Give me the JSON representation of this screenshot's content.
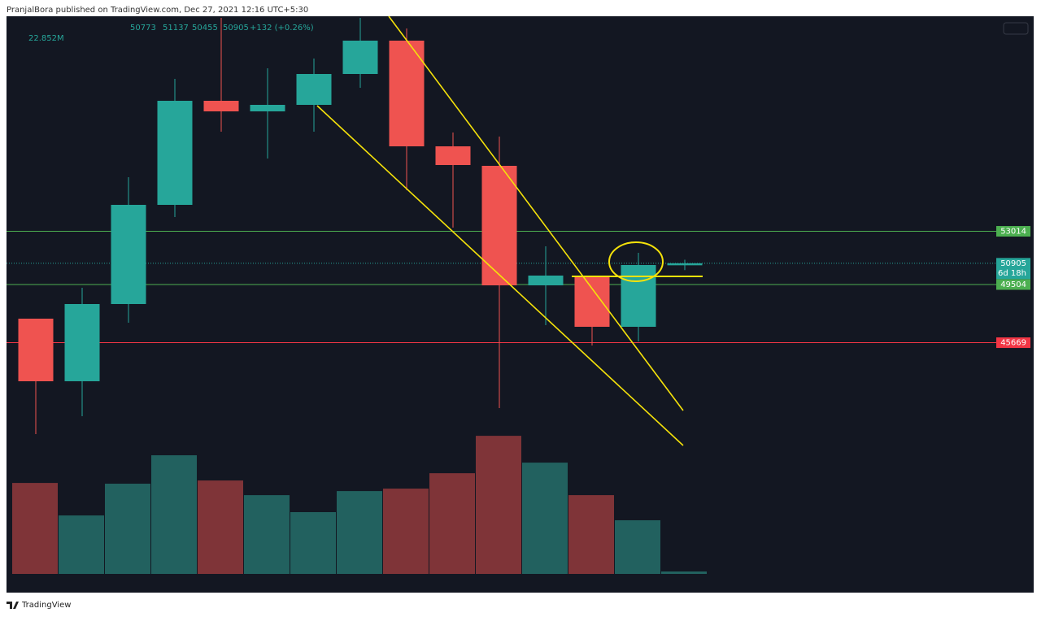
{
  "attribution": "PranjalBora published on TradingView.com, Dec 27, 2021 12:16 UTC+5:30",
  "footer": "TradingView",
  "chart_data": {
    "type": "candlestick",
    "open": [
      47253,
      43126,
      48218,
      54757,
      61618,
      60921,
      61350,
      63386,
      65584,
      58616,
      57330,
      49450,
      49986,
      46717,
      50773
    ],
    "high": [
      47253,
      49290,
      56579,
      63065,
      67085,
      63762,
      64405,
      67085,
      66388,
      59527,
      59259,
      52023,
      50094,
      51594,
      51137
    ],
    "low": [
      39642,
      40821,
      46985,
      53953,
      59581,
      57812,
      59581,
      62475,
      55722,
      53256,
      41357,
      46824,
      45484,
      45752,
      50455
    ],
    "close": [
      43126,
      48218,
      54757,
      61618,
      60921,
      61350,
      63386,
      65584,
      58616,
      57383,
      49450,
      50094,
      46717,
      50790,
      50905
    ],
    "change": "+132 (+0.26%)",
    "volume": [
      851,
      547,
      844,
      1110,
      874,
      737,
      578,
      775,
      798,
      942,
      1292,
      1041,
      737,
      502,
      22.852
    ],
    "volume_label": "22.852M",
    "up_color": "#26a69a",
    "down_color": "#ef5350",
    "volume_up_color": "#22615f",
    "volume_down_color": "#7f3438",
    "price_lines": [
      {
        "value": 53014,
        "color": "#4caf50"
      },
      {
        "value": 50905,
        "color": "#26a69a",
        "countdown": "6d 18h"
      },
      {
        "value": 49504,
        "color": "#4caf50"
      },
      {
        "value": 45669,
        "color": "#f23645"
      }
    ]
  }
}
